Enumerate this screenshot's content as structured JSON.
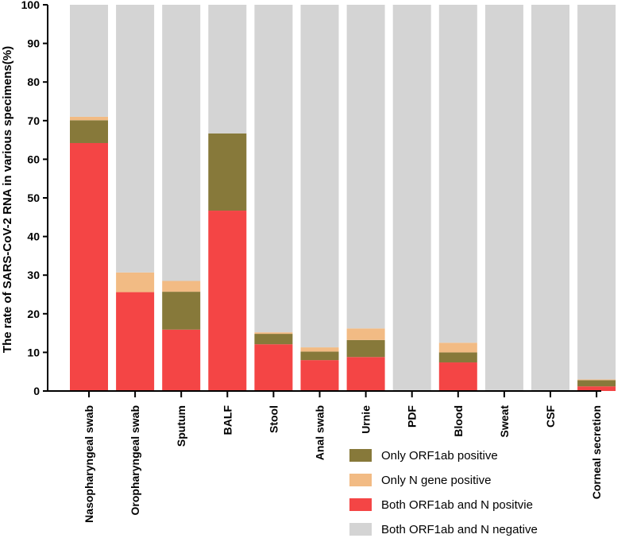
{
  "chart_data": {
    "type": "bar",
    "stacked": true,
    "title": "",
    "xlabel": "",
    "ylabel": "The rate of SARS-CoV-2 RNA in various specimens(%)",
    "ylim": [
      0,
      100
    ],
    "yticks": [
      0,
      10,
      20,
      30,
      40,
      50,
      60,
      70,
      80,
      90,
      100
    ],
    "categories": [
      "Nasopharyngeal swab",
      "Oropharyngeal swab",
      "Sputum",
      "BALF",
      "Stool",
      "Anal swab",
      "Urnie",
      "PDF",
      "Blood",
      "Sweat",
      "CSF",
      "Corneal secretion"
    ],
    "series": [
      {
        "name": "Both ORF1ab and N positvie",
        "color": "#f44545",
        "values": [
          64.2,
          25.6,
          15.9,
          46.7,
          12.1,
          8.0,
          8.8,
          0,
          7.4,
          0,
          0,
          1.2
        ]
      },
      {
        "name": "Only ORF1ab positive",
        "color": "#87793a",
        "values": [
          5.9,
          0,
          9.8,
          20.0,
          2.7,
          2.2,
          4.4,
          0,
          2.6,
          0,
          0,
          1.6
        ]
      },
      {
        "name": "Only N gene positive",
        "color": "#f2bb84",
        "values": [
          0.9,
          5.1,
          2.8,
          0,
          0.4,
          1.1,
          3.0,
          0,
          2.5,
          0,
          0,
          0.2
        ]
      },
      {
        "name": "Both ORF1ab and N negative",
        "color": "#d4d4d4",
        "values": [
          29.0,
          69.3,
          71.5,
          33.3,
          84.8,
          88.7,
          83.8,
          100,
          87.5,
          100,
          100,
          97.0
        ]
      }
    ],
    "legend": {
      "position": "bottom-right",
      "order": [
        "Only ORF1ab positive",
        "Only N gene positive",
        "Both ORF1ab and N positvie",
        "Both ORF1ab and N negative"
      ]
    }
  }
}
